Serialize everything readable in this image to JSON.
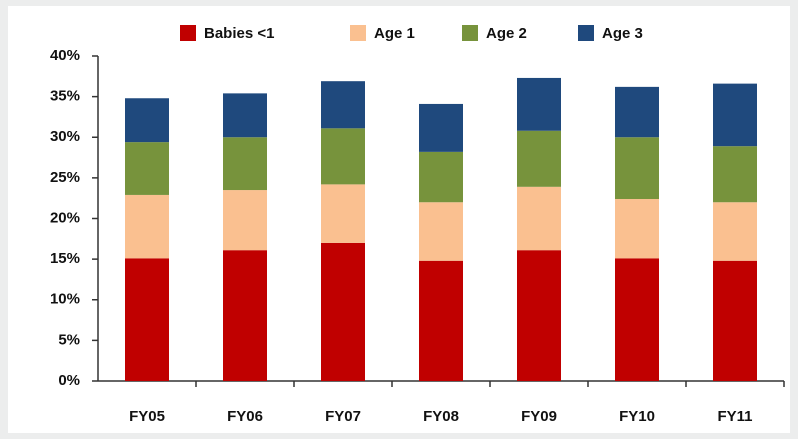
{
  "chart_data": {
    "type": "stacked_bar",
    "categories": [
      "FY05",
      "FY06",
      "FY07",
      "FY08",
      "FY09",
      "FY10",
      "FY11"
    ],
    "series": [
      {
        "name": "Babies <1",
        "color": "#c00000",
        "values": [
          15.1,
          16.1,
          17.0,
          14.8,
          16.1,
          15.1,
          14.8
        ]
      },
      {
        "name": "Age 1",
        "color": "#fac090",
        "values": [
          7.8,
          7.4,
          7.2,
          7.2,
          7.8,
          7.3,
          7.2
        ]
      },
      {
        "name": "Age 2",
        "color": "#77933c",
        "values": [
          6.5,
          6.5,
          6.9,
          6.2,
          6.9,
          7.6,
          6.9
        ]
      },
      {
        "name": "Age 3",
        "color": "#1f497d",
        "values": [
          5.4,
          5.4,
          5.8,
          5.9,
          6.5,
          6.2,
          7.7
        ]
      }
    ],
    "ylim": [
      0,
      40
    ],
    "yticks": [
      {
        "value": 0,
        "label": "0%"
      },
      {
        "value": 5,
        "label": "5%"
      },
      {
        "value": 10,
        "label": "10%"
      },
      {
        "value": 15,
        "label": "15%"
      },
      {
        "value": 20,
        "label": "20%"
      },
      {
        "value": 25,
        "label": "25%"
      },
      {
        "value": 30,
        "label": "30%"
      },
      {
        "value": 35,
        "label": "35%"
      },
      {
        "value": 40,
        "label": "40%"
      }
    ],
    "legend": "top",
    "grid": false
  }
}
